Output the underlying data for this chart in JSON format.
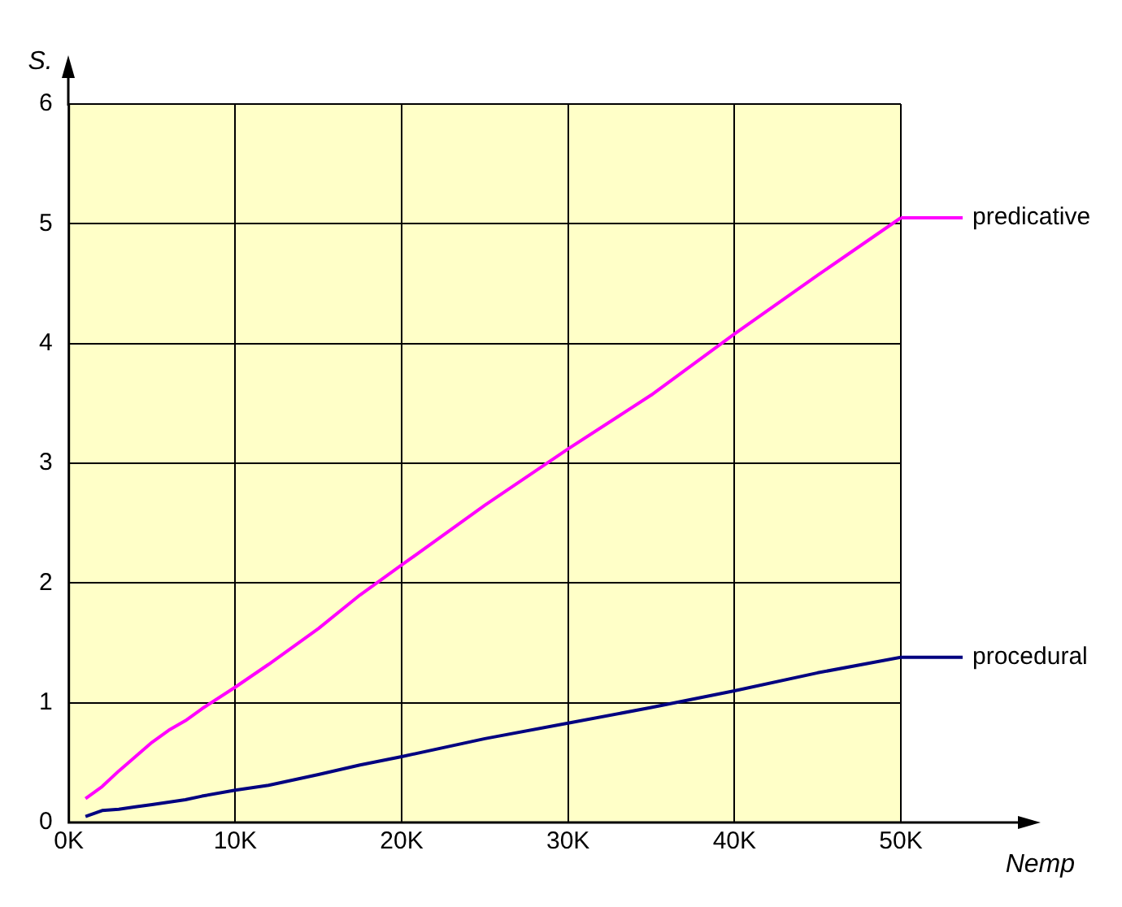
{
  "chart_data": {
    "type": "line",
    "xlabel": "Nemp",
    "ylabel": "S.",
    "xlim": [
      0,
      50000
    ],
    "xticks": [
      {
        "value": 0,
        "label": "0K"
      },
      {
        "value": 10000,
        "label": "10K"
      },
      {
        "value": 20000,
        "label": "20K"
      },
      {
        "value": 30000,
        "label": "30K"
      },
      {
        "value": 40000,
        "label": "40K"
      },
      {
        "value": 50000,
        "label": "50K"
      }
    ],
    "ylim": [
      0,
      6
    ],
    "yticks": [
      0,
      1,
      2,
      3,
      4,
      5,
      6
    ],
    "grid": true,
    "marker": "none",
    "legend": "right",
    "x": [
      1000,
      2000,
      3000,
      4000,
      5000,
      6000,
      7000,
      8000,
      10000,
      12000,
      15000,
      17500,
      20000,
      25000,
      30000,
      35000,
      40000,
      45000,
      50000
    ],
    "series": [
      {
        "name": "predicative",
        "color": "#ff00ff",
        "values": [
          0.2,
          0.3,
          0.43,
          0.55,
          0.67,
          0.77,
          0.85,
          0.95,
          1.13,
          1.32,
          1.62,
          1.9,
          2.15,
          2.65,
          3.12,
          3.57,
          4.08,
          4.57,
          5.05
        ]
      },
      {
        "name": "procedural",
        "color": "#000080",
        "values": [
          0.05,
          0.1,
          0.11,
          0.13,
          0.15,
          0.17,
          0.19,
          0.22,
          0.27,
          0.31,
          0.4,
          0.48,
          0.55,
          0.7,
          0.83,
          0.96,
          1.1,
          1.25,
          1.38
        ]
      }
    ]
  }
}
